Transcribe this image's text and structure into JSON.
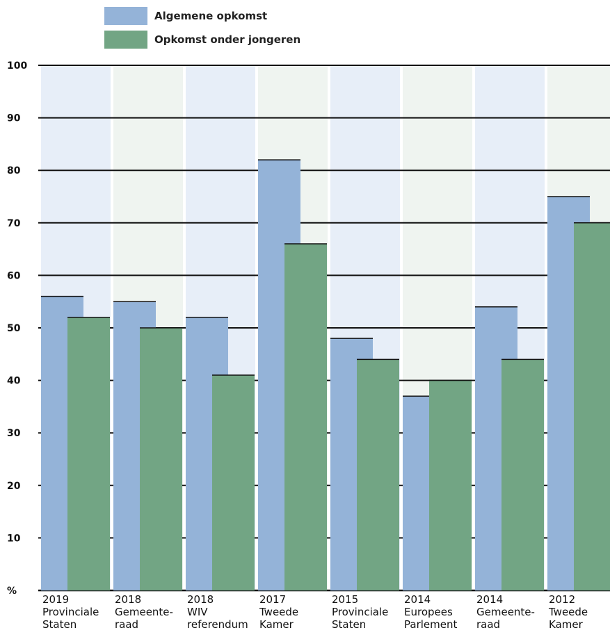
{
  "chart_data": {
    "type": "bar",
    "categories": [
      [
        "2019",
        "Provinciale",
        "Staten"
      ],
      [
        "2018",
        "Gemeente-",
        "raad"
      ],
      [
        "2018",
        "WIV",
        "referendum"
      ],
      [
        "2017",
        "Tweede",
        "Kamer"
      ],
      [
        "2015",
        "Provinciale",
        "Staten"
      ],
      [
        "2014",
        "Europees",
        "Parlement"
      ],
      [
        "2014",
        "Gemeente-",
        "raad"
      ],
      [
        "2012",
        "Tweede",
        "Kamer"
      ]
    ],
    "series": [
      {
        "name": "Algemene opkomst",
        "color": "#94b3d8",
        "values": [
          56,
          55,
          52,
          82,
          48,
          37,
          54,
          75
        ]
      },
      {
        "name": "Opkomst onder jongeren",
        "color": "#72a584",
        "values": [
          52,
          50,
          41,
          66,
          44,
          40,
          44,
          70
        ]
      }
    ],
    "ylim": [
      0,
      100
    ],
    "yticks": [
      "%",
      "10",
      "20",
      "30",
      "40",
      "50",
      "60",
      "70",
      "80",
      "90",
      "100"
    ],
    "grid": true,
    "legend_position": "top-left",
    "band_colors": [
      "#e7eef8",
      "#eff4f0"
    ]
  }
}
